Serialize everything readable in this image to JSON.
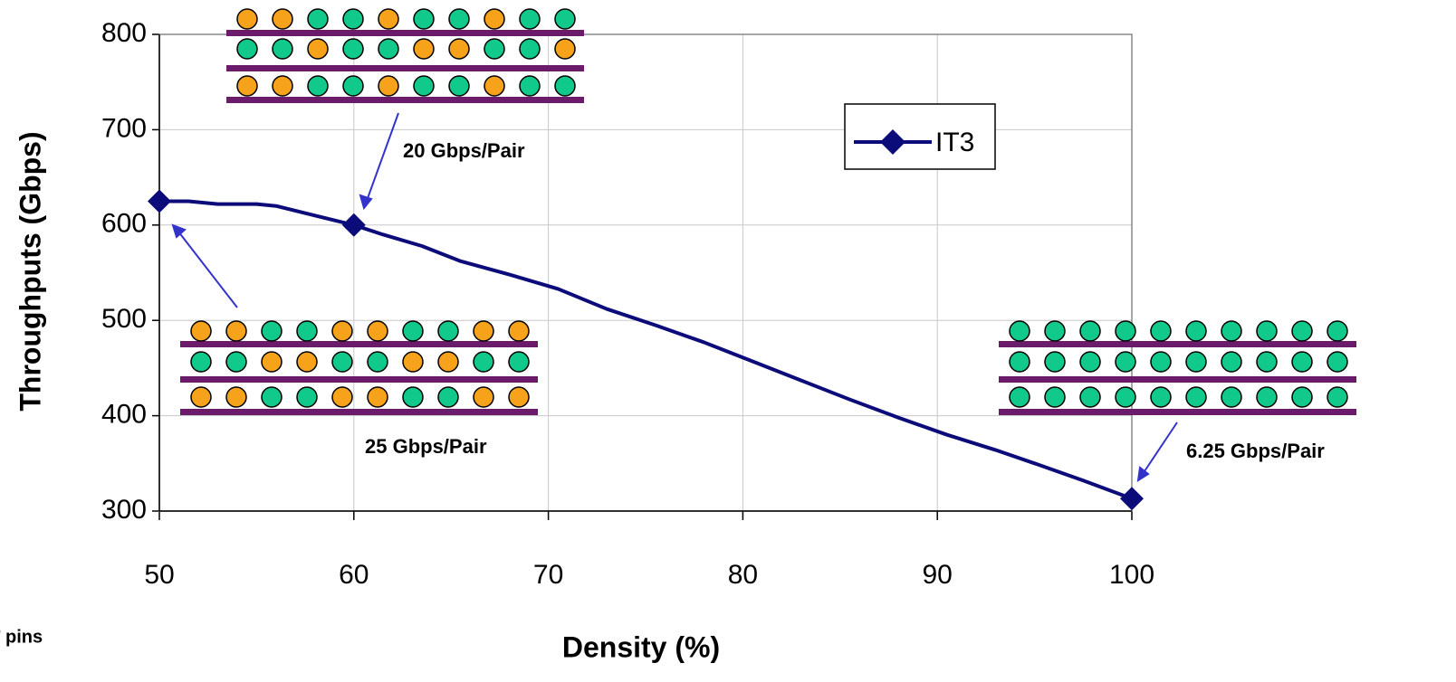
{
  "chart_data": {
    "type": "line",
    "x_label": "Density (%)",
    "y_label": "Throughputs (Gbps)",
    "x": [
      50,
      51.5,
      53,
      55,
      56,
      58,
      60,
      61.5,
      63.5,
      65.5,
      68,
      70.5,
      73,
      75.5,
      78,
      80.5,
      83,
      85.5,
      88,
      90.5,
      93,
      95,
      97.5,
      100
    ],
    "series": [
      {
        "name": "IT3",
        "color": "#0b0b7a",
        "values": [
          625,
          625,
          622,
          622,
          620,
          610,
          600,
          590,
          578,
          562,
          548,
          533,
          512,
          495,
          477,
          457,
          437,
          417,
          398,
          380,
          364,
          350,
          332,
          313
        ],
        "markers": [
          0,
          6,
          23
        ]
      }
    ],
    "xlim": [
      50,
      100
    ],
    "xticks": [
      50,
      60,
      70,
      80,
      90,
      100
    ],
    "ylim": [
      300,
      800
    ],
    "yticks": [
      300,
      400,
      500,
      600,
      700,
      800
    ],
    "grid": true,
    "legend": "upper right",
    "annotations": [
      "20 Gbps/Pair",
      "25 Gbps/Pair",
      "6.25 Gbps/Pair",
      "’ pins"
    ]
  }
}
